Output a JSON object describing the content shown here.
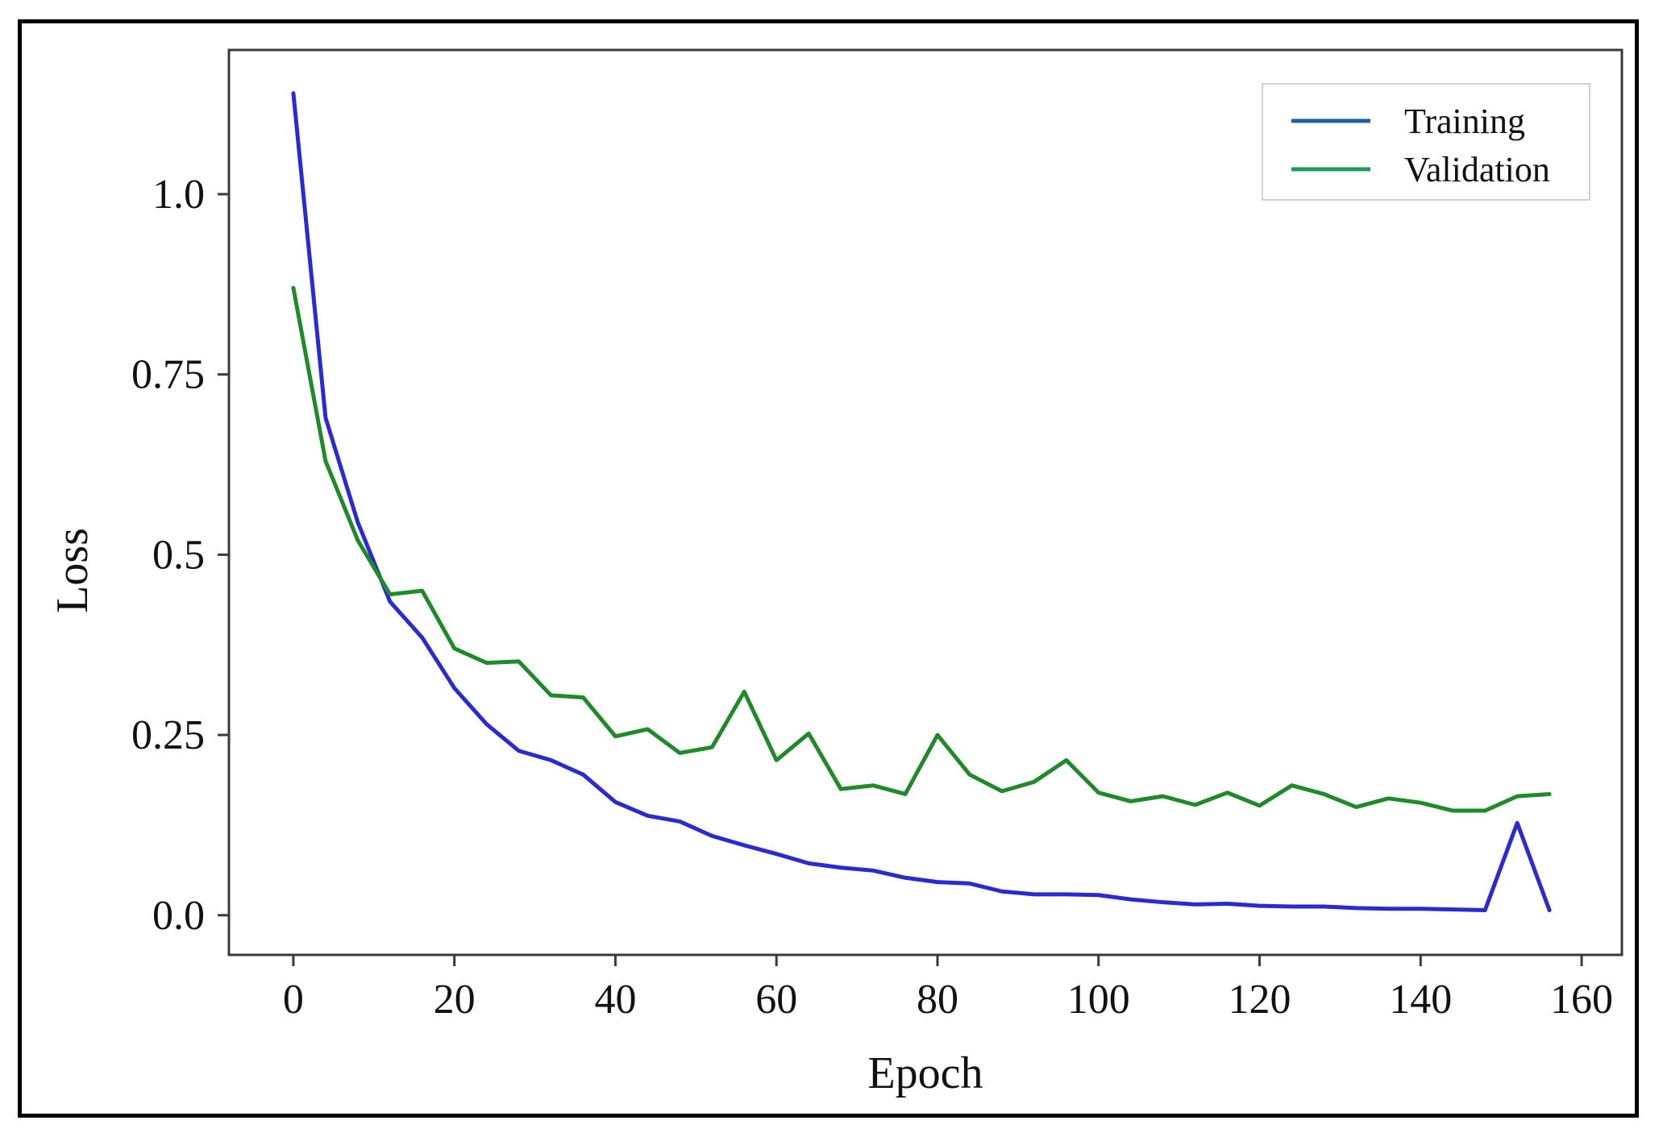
{
  "chart_data": {
    "type": "line",
    "title": "",
    "xlabel": "Epoch",
    "ylabel": "Loss",
    "xlim": [
      -8,
      165
    ],
    "ylim": [
      -0.055,
      1.2
    ],
    "xticks": [
      0,
      20,
      40,
      60,
      80,
      100,
      120,
      140,
      160
    ],
    "xtick_labels": [
      "0",
      "20",
      "40",
      "60",
      "80",
      "100",
      "120",
      "140",
      "160"
    ],
    "yticks": [
      0.0,
      0.25,
      0.5,
      0.75,
      1.0
    ],
    "ytick_labels": [
      "0.0",
      "0.25",
      "0.5",
      "0.75",
      "1.0"
    ],
    "grid": false,
    "legend_position": "top-right",
    "x": [
      0,
      4,
      8,
      12,
      16,
      20,
      24,
      28,
      32,
      36,
      40,
      44,
      48,
      52,
      56,
      60,
      64,
      68,
      72,
      76,
      80,
      84,
      88,
      92,
      96,
      100,
      104,
      108,
      112,
      116,
      120,
      124,
      128,
      132,
      136,
      140,
      144,
      148,
      152,
      156
    ],
    "series": [
      {
        "name": "Training",
        "legend_color": "#1f5fa8",
        "line_color": "#2a2ad4",
        "values": [
          1.14,
          0.69,
          0.545,
          0.435,
          0.385,
          0.315,
          0.265,
          0.228,
          0.215,
          0.195,
          0.157,
          0.138,
          0.13,
          0.11,
          0.097,
          0.085,
          0.072,
          0.066,
          0.062,
          0.052,
          0.046,
          0.044,
          0.033,
          0.029,
          0.029,
          0.028,
          0.022,
          0.018,
          0.015,
          0.016,
          0.013,
          0.012,
          0.012,
          0.01,
          0.009,
          0.009,
          0.008,
          0.007,
          0.128,
          0.007
        ]
      },
      {
        "name": "Validation",
        "legend_color": "#1f9a5a",
        "line_color": "#1e8a2a",
        "values": [
          0.87,
          0.63,
          0.52,
          0.445,
          0.45,
          0.37,
          0.35,
          0.352,
          0.305,
          0.302,
          0.248,
          0.258,
          0.225,
          0.233,
          0.31,
          0.215,
          0.252,
          0.175,
          0.18,
          0.168,
          0.25,
          0.195,
          0.172,
          0.185,
          0.215,
          0.17,
          0.158,
          0.165,
          0.153,
          0.17,
          0.152,
          0.18,
          0.168,
          0.15,
          0.162,
          0.156,
          0.145,
          0.145,
          0.165,
          0.168
        ]
      }
    ]
  }
}
